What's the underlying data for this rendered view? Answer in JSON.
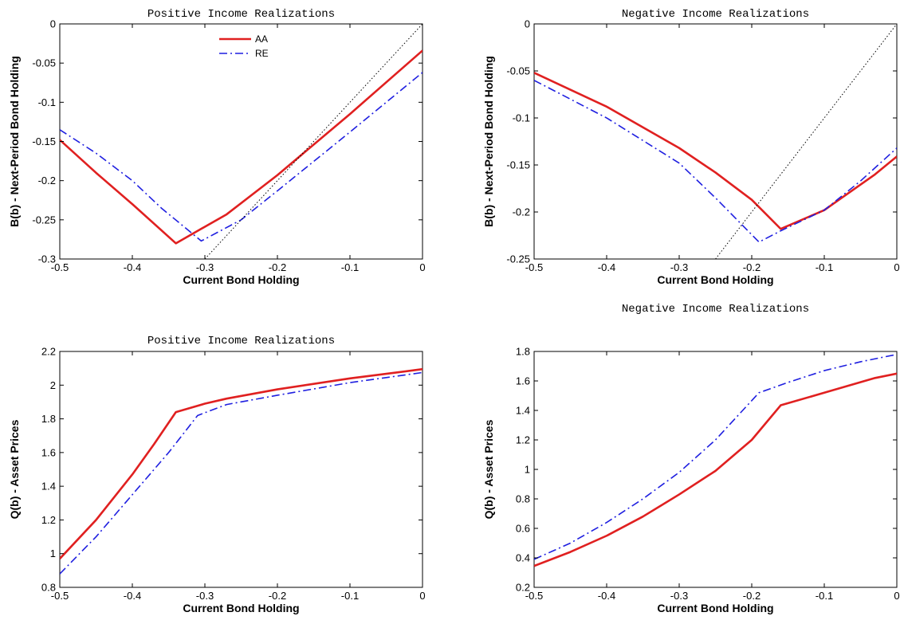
{
  "chart_data": [
    {
      "type": "line",
      "title": "Positive Income Realizations",
      "xlabel": "Current Bond Holding",
      "ylabel": "B(b) - Next-Period Bond Holding",
      "xlim": [
        -0.5,
        0
      ],
      "ylim": [
        -0.3,
        0
      ],
      "xticks": [
        -0.5,
        -0.4,
        -0.3,
        -0.2,
        -0.1,
        0
      ],
      "xtick_labels": [
        "-0.5",
        "-0.4",
        "-0.3",
        "-0.2",
        "-0.1",
        "0"
      ],
      "yticks": [
        -0.3,
        -0.25,
        -0.2,
        -0.15,
        -0.1,
        -0.05,
        0
      ],
      "ytick_labels": [
        "-0.3",
        "-0.25",
        "-0.2",
        "-0.15",
        "-0.1",
        "-0.05",
        "0"
      ],
      "legend": "top-center",
      "series": [
        {
          "name": "AA",
          "color": "#e02020",
          "style": "solid",
          "x": [
            -0.5,
            -0.45,
            -0.4,
            -0.34,
            -0.27,
            -0.2,
            -0.1,
            0
          ],
          "y": [
            -0.148,
            -0.19,
            -0.23,
            -0.28,
            -0.243,
            -0.193,
            -0.115,
            -0.034
          ]
        },
        {
          "name": "RE",
          "color": "#1f1fe0",
          "style": "dashdot",
          "x": [
            -0.5,
            -0.45,
            -0.4,
            -0.36,
            -0.305,
            -0.25,
            -0.2,
            -0.1,
            0
          ],
          "y": [
            -0.135,
            -0.165,
            -0.2,
            -0.235,
            -0.277,
            -0.25,
            -0.213,
            -0.138,
            -0.062
          ]
        },
        {
          "name": "",
          "color": "#000000",
          "style": "dotted",
          "x": [
            -0.3,
            0
          ],
          "y": [
            -0.3,
            0
          ]
        }
      ]
    },
    {
      "type": "line",
      "title": "Negative Income Realizations",
      "xlabel": "Current Bond Holding",
      "ylabel": "B(b) - Next-Period Bond Holding",
      "xlim": [
        -0.5,
        0
      ],
      "ylim": [
        -0.25,
        0
      ],
      "xticks": [
        -0.5,
        -0.4,
        -0.3,
        -0.2,
        -0.1,
        0
      ],
      "xtick_labels": [
        "-0.5",
        "-0.4",
        "-0.3",
        "-0.2",
        "-0.1",
        "0"
      ],
      "yticks": [
        -0.25,
        -0.2,
        -0.15,
        -0.1,
        -0.05,
        0
      ],
      "ytick_labels": [
        "-0.25",
        "-0.2",
        "-0.15",
        "-0.1",
        "-0.05",
        "0"
      ],
      "series": [
        {
          "name": "AA",
          "color": "#e02020",
          "style": "solid",
          "x": [
            -0.5,
            -0.4,
            -0.3,
            -0.25,
            -0.2,
            -0.16,
            -0.1,
            -0.03,
            0
          ],
          "y": [
            -0.052,
            -0.088,
            -0.132,
            -0.158,
            -0.187,
            -0.218,
            -0.198,
            -0.16,
            -0.141
          ]
        },
        {
          "name": "RE",
          "color": "#1f1fe0",
          "style": "dashdot",
          "x": [
            -0.5,
            -0.4,
            -0.3,
            -0.25,
            -0.19,
            -0.16,
            -0.1,
            -0.05,
            0
          ],
          "y": [
            -0.06,
            -0.1,
            -0.148,
            -0.185,
            -0.232,
            -0.22,
            -0.198,
            -0.167,
            -0.132
          ]
        },
        {
          "name": "",
          "color": "#000000",
          "style": "dotted",
          "x": [
            -0.25,
            0
          ],
          "y": [
            -0.25,
            0
          ]
        }
      ]
    },
    {
      "type": "line",
      "title": "Positive Income Realizations",
      "xlabel": "Current Bond Holding",
      "ylabel": "Q(b) - Asset Prices",
      "xlim": [
        -0.5,
        0
      ],
      "ylim": [
        0.8,
        2.2
      ],
      "xticks": [
        -0.5,
        -0.4,
        -0.3,
        -0.2,
        -0.1,
        0
      ],
      "xtick_labels": [
        "-0.5",
        "-0.4",
        "-0.3",
        "-0.2",
        "-0.1",
        "0"
      ],
      "yticks": [
        0.8,
        1,
        1.2,
        1.4,
        1.6,
        1.8,
        2,
        2.2
      ],
      "ytick_labels": [
        "0.8",
        "1",
        "1.2",
        "1.4",
        "1.6",
        "1.8",
        "2",
        "2.2"
      ],
      "series": [
        {
          "name": "AA",
          "color": "#e02020",
          "style": "solid",
          "x": [
            -0.5,
            -0.45,
            -0.4,
            -0.37,
            -0.34,
            -0.3,
            -0.27,
            -0.2,
            -0.1,
            0
          ],
          "y": [
            0.97,
            1.2,
            1.47,
            1.65,
            1.84,
            1.89,
            1.92,
            1.975,
            2.04,
            2.095
          ]
        },
        {
          "name": "RE",
          "color": "#1f1fe0",
          "style": "dashdot",
          "x": [
            -0.5,
            -0.45,
            -0.4,
            -0.35,
            -0.31,
            -0.27,
            -0.2,
            -0.1,
            0
          ],
          "y": [
            0.88,
            1.1,
            1.35,
            1.6,
            1.82,
            1.885,
            1.94,
            2.015,
            2.075
          ]
        }
      ]
    },
    {
      "type": "line",
      "title": "Negative Income Realizations",
      "xlabel": "Current Bond Holding",
      "ylabel": "Q(b) - Asset Prices",
      "xlim": [
        -0.5,
        0
      ],
      "ylim": [
        0.2,
        1.8
      ],
      "xticks": [
        -0.5,
        -0.4,
        -0.3,
        -0.2,
        -0.1,
        0
      ],
      "xtick_labels": [
        "-0.5",
        "-0.4",
        "-0.3",
        "-0.2",
        "-0.1",
        "0"
      ],
      "yticks": [
        0.2,
        0.4,
        0.6,
        0.8,
        1,
        1.2,
        1.4,
        1.6,
        1.8
      ],
      "ytick_labels": [
        "0.2",
        "0.4",
        "0.6",
        "0.8",
        "1",
        "1.2",
        "1.4",
        "1.6",
        "1.8"
      ],
      "series": [
        {
          "name": "AA",
          "color": "#e02020",
          "style": "solid",
          "x": [
            -0.5,
            -0.45,
            -0.4,
            -0.35,
            -0.3,
            -0.25,
            -0.2,
            -0.16,
            -0.1,
            -0.03,
            0
          ],
          "y": [
            0.345,
            0.44,
            0.55,
            0.68,
            0.83,
            0.99,
            1.2,
            1.435,
            1.52,
            1.62,
            1.65
          ]
        },
        {
          "name": "RE",
          "color": "#1f1fe0",
          "style": "dashdot",
          "x": [
            -0.5,
            -0.45,
            -0.4,
            -0.35,
            -0.3,
            -0.25,
            -0.19,
            -0.15,
            -0.1,
            -0.05,
            0
          ],
          "y": [
            0.39,
            0.5,
            0.64,
            0.8,
            0.98,
            1.2,
            1.52,
            1.59,
            1.67,
            1.73,
            1.78
          ]
        }
      ]
    }
  ]
}
